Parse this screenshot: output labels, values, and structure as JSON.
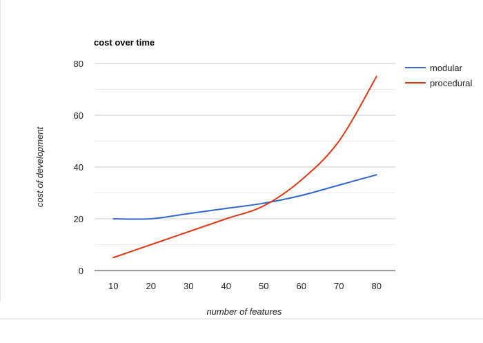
{
  "chart_data": {
    "type": "line",
    "title": "cost over time",
    "xlabel": "number of features",
    "ylabel": "cost of development",
    "x": [
      10,
      20,
      30,
      40,
      50,
      60,
      70,
      80
    ],
    "xlim": [
      5,
      85
    ],
    "ylim": [
      0,
      80
    ],
    "y_ticks": [
      0,
      20,
      40,
      60,
      80
    ],
    "grid": true,
    "legend": "top-right",
    "series": [
      {
        "name": "modular",
        "color": "#3366cc",
        "values": [
          20,
          20,
          22,
          24,
          26,
          29,
          33,
          37
        ]
      },
      {
        "name": "procedural",
        "color": "#dc3912",
        "values": [
          5,
          10,
          15,
          20,
          25,
          35,
          50,
          75
        ]
      }
    ]
  }
}
